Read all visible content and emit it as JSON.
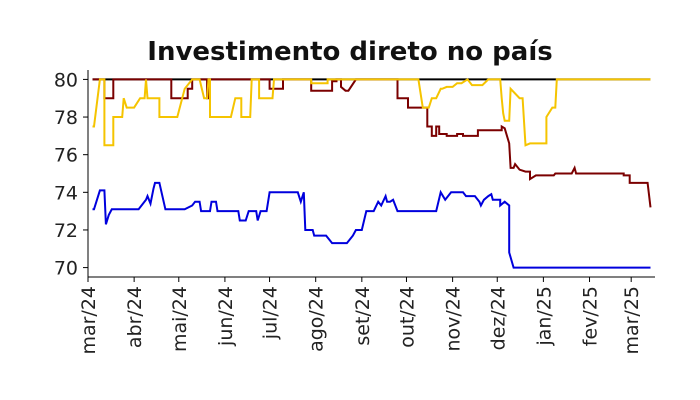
{
  "chart_data": {
    "type": "line",
    "title": "Investimento direto no país",
    "xlabel": "",
    "ylabel": "",
    "x_axis": {
      "type": "date",
      "range": [
        "2024-03-01",
        "2025-03-17"
      ],
      "ticks": [
        "2024-03-01",
        "2024-04-01",
        "2024-05-01",
        "2024-06-01",
        "2024-07-01",
        "2024-08-01",
        "2024-09-01",
        "2024-10-01",
        "2024-11-01",
        "2024-12-01",
        "2025-01-01",
        "2025-02-01",
        "2025-03-01"
      ],
      "tick_labels": [
        "mar/24",
        "abr/24",
        "mai/24",
        "jun/24",
        "jul/24",
        "ago/24",
        "set/24",
        "out/24",
        "nov/24",
        "dez/24",
        "jan/25",
        "fev/25",
        "mar/25"
      ]
    },
    "y_axis": {
      "range": [
        69.5,
        80.5
      ],
      "ticks": [
        70,
        72,
        74,
        76,
        78,
        80
      ],
      "tick_labels": [
        "70",
        "72",
        "74",
        "76",
        "78",
        "80"
      ]
    },
    "grid": false,
    "legend": "none",
    "series": [
      {
        "color": "#000000",
        "points": [
          [
            "2024-03-04",
            80
          ],
          [
            "2025-03-14",
            80
          ]
        ]
      },
      {
        "color": "#7b0000",
        "points": [
          [
            "2024-03-04",
            80
          ],
          [
            "2024-03-12",
            80
          ],
          [
            "2024-03-12",
            79
          ],
          [
            "2024-03-18",
            79
          ],
          [
            "2024-03-18",
            80
          ],
          [
            "2024-04-26",
            80
          ],
          [
            "2024-04-26",
            79
          ],
          [
            "2024-05-07",
            79
          ],
          [
            "2024-05-07",
            79.5
          ],
          [
            "2024-05-10",
            79.5
          ],
          [
            "2024-05-10",
            80
          ],
          [
            "2024-05-20",
            80
          ],
          [
            "2024-05-20",
            79
          ],
          [
            "2024-05-21",
            79
          ],
          [
            "2024-05-21",
            80
          ],
          [
            "2024-07-01",
            80
          ],
          [
            "2024-07-01",
            79.5
          ],
          [
            "2024-07-10",
            79.5
          ],
          [
            "2024-07-10",
            80
          ],
          [
            "2024-07-29",
            80
          ],
          [
            "2024-07-29",
            79.4
          ],
          [
            "2024-08-12",
            79.4
          ],
          [
            "2024-08-12",
            79.9
          ],
          [
            "2024-08-15",
            79.9
          ],
          [
            "2024-08-15",
            80
          ],
          [
            "2024-08-18",
            80
          ],
          [
            "2024-08-18",
            79.6
          ],
          [
            "2024-08-21",
            79.4
          ],
          [
            "2024-08-23",
            79.4
          ],
          [
            "2024-08-28",
            80
          ],
          [
            "2024-09-25",
            80
          ],
          [
            "2024-09-25",
            79
          ],
          [
            "2024-10-02",
            79
          ],
          [
            "2024-10-02",
            78.5
          ],
          [
            "2024-10-15",
            78.5
          ],
          [
            "2024-10-15",
            77.5
          ],
          [
            "2024-10-18",
            77.5
          ],
          [
            "2024-10-18",
            77
          ],
          [
            "2024-10-21",
            77
          ],
          [
            "2024-10-21",
            77.5
          ],
          [
            "2024-10-23",
            77.5
          ],
          [
            "2024-10-23",
            77.1
          ],
          [
            "2024-10-28",
            77.1
          ],
          [
            "2024-10-28",
            77
          ],
          [
            "2024-11-04",
            77
          ],
          [
            "2024-11-04",
            77.1
          ],
          [
            "2024-11-08",
            77.1
          ],
          [
            "2024-11-08",
            77
          ],
          [
            "2024-11-18",
            77
          ],
          [
            "2024-11-18",
            77.3
          ],
          [
            "2024-11-28",
            77.3
          ],
          [
            "2024-11-28",
            77.3
          ],
          [
            "2024-12-04",
            77.3
          ],
          [
            "2024-12-04",
            77.5
          ],
          [
            "2024-12-06",
            77.4
          ],
          [
            "2024-12-09",
            76.6
          ],
          [
            "2024-12-10",
            75.3
          ],
          [
            "2024-12-12",
            75.3
          ],
          [
            "2024-12-13",
            75.5
          ],
          [
            "2024-12-16",
            75.2
          ],
          [
            "2024-12-20",
            75.1
          ],
          [
            "2024-12-23",
            75.1
          ],
          [
            "2024-12-23",
            74.7
          ],
          [
            "2024-12-27",
            74.9
          ],
          [
            "2025-01-08",
            74.9
          ],
          [
            "2025-01-09",
            75
          ],
          [
            "2025-01-20",
            75
          ],
          [
            "2025-01-22",
            75.3
          ],
          [
            "2025-01-23",
            75
          ],
          [
            "2025-02-24",
            75
          ],
          [
            "2025-02-24",
            74.9
          ],
          [
            "2025-02-28",
            74.9
          ],
          [
            "2025-02-28",
            74.5
          ],
          [
            "2025-03-12",
            74.5
          ],
          [
            "2025-03-14",
            73.2
          ]
        ]
      },
      {
        "color": "#f5c400",
        "points": [
          [
            "2024-03-04",
            77.5
          ],
          [
            "2024-03-05",
            77.5
          ],
          [
            "2024-03-09",
            80
          ],
          [
            "2024-03-12",
            80
          ],
          [
            "2024-03-12",
            76.5
          ],
          [
            "2024-03-18",
            76.5
          ],
          [
            "2024-03-18",
            78
          ],
          [
            "2024-03-24",
            78
          ],
          [
            "2024-03-25",
            79
          ],
          [
            "2024-03-27",
            78.5
          ],
          [
            "2024-04-01",
            78.5
          ],
          [
            "2024-04-05",
            79
          ],
          [
            "2024-04-08",
            79
          ],
          [
            "2024-04-09",
            80
          ],
          [
            "2024-04-10",
            79
          ],
          [
            "2024-04-18",
            79
          ],
          [
            "2024-04-18",
            78
          ],
          [
            "2024-04-30",
            78
          ],
          [
            "2024-05-05",
            79.5
          ],
          [
            "2024-05-10",
            80
          ],
          [
            "2024-05-15",
            80
          ],
          [
            "2024-05-18",
            79
          ],
          [
            "2024-05-20",
            79
          ],
          [
            "2024-05-21",
            80
          ],
          [
            "2024-05-22",
            80
          ],
          [
            "2024-05-22",
            78
          ],
          [
            "2024-06-05",
            78
          ],
          [
            "2024-06-08",
            79
          ],
          [
            "2024-06-12",
            79
          ],
          [
            "2024-06-12",
            78
          ],
          [
            "2024-06-18",
            78
          ],
          [
            "2024-06-19",
            80
          ],
          [
            "2024-06-24",
            80
          ],
          [
            "2024-06-24",
            79
          ],
          [
            "2024-07-03",
            79
          ],
          [
            "2024-07-04",
            80
          ],
          [
            "2024-07-29",
            80
          ],
          [
            "2024-07-29",
            79.8
          ],
          [
            "2024-08-09",
            79.8
          ],
          [
            "2024-08-09",
            80
          ],
          [
            "2024-10-09",
            80
          ],
          [
            "2024-10-12",
            78.5
          ],
          [
            "2024-10-16",
            78.5
          ],
          [
            "2024-10-18",
            79
          ],
          [
            "2024-10-21",
            79
          ],
          [
            "2024-10-24",
            79.5
          ],
          [
            "2024-10-25",
            79.5
          ],
          [
            "2024-10-28",
            79.6
          ],
          [
            "2024-11-01",
            79.6
          ],
          [
            "2024-11-04",
            79.8
          ],
          [
            "2024-11-07",
            79.8
          ],
          [
            "2024-11-11",
            80
          ],
          [
            "2024-11-14",
            79.7
          ],
          [
            "2024-11-21",
            79.7
          ],
          [
            "2024-11-25",
            80
          ],
          [
            "2024-12-03",
            80
          ],
          [
            "2024-12-04",
            79
          ],
          [
            "2024-12-05",
            78.2
          ],
          [
            "2024-12-06",
            77.8
          ],
          [
            "2024-12-09",
            77.8
          ],
          [
            "2024-12-10",
            79.5
          ],
          [
            "2024-12-16",
            79
          ],
          [
            "2024-12-18",
            79
          ],
          [
            "2024-12-20",
            76.5
          ],
          [
            "2024-12-23",
            76.6
          ],
          [
            "2025-01-03",
            76.6
          ],
          [
            "2025-01-03",
            78
          ],
          [
            "2025-01-07",
            78.5
          ],
          [
            "2025-01-09",
            78.5
          ],
          [
            "2025-01-10",
            80
          ],
          [
            "2025-03-14",
            80
          ]
        ]
      },
      {
        "color": "#0000dd",
        "points": [
          [
            "2024-03-04",
            73.1
          ],
          [
            "2024-03-05",
            73.1
          ],
          [
            "2024-03-09",
            74.1
          ],
          [
            "2024-03-12",
            74.1
          ],
          [
            "2024-03-13",
            72.3
          ],
          [
            "2024-03-15",
            72.8
          ],
          [
            "2024-03-17",
            73.1
          ],
          [
            "2024-04-04",
            73.1
          ],
          [
            "2024-04-09",
            73.6
          ],
          [
            "2024-04-10",
            73.8
          ],
          [
            "2024-04-12",
            73.4
          ],
          [
            "2024-04-14",
            74.2
          ],
          [
            "2024-04-15",
            74.5
          ],
          [
            "2024-04-18",
            74.5
          ],
          [
            "2024-04-22",
            73.1
          ],
          [
            "2024-05-05",
            73.1
          ],
          [
            "2024-05-10",
            73.3
          ],
          [
            "2024-05-12",
            73.5
          ],
          [
            "2024-05-15",
            73.5
          ],
          [
            "2024-05-16",
            73
          ],
          [
            "2024-05-22",
            73
          ],
          [
            "2024-05-23",
            73.5
          ],
          [
            "2024-05-26",
            73.5
          ],
          [
            "2024-05-27",
            73
          ],
          [
            "2024-06-10",
            73
          ],
          [
            "2024-06-11",
            72.5
          ],
          [
            "2024-06-15",
            72.5
          ],
          [
            "2024-06-17",
            73
          ],
          [
            "2024-06-22",
            73
          ],
          [
            "2024-06-23",
            72.5
          ],
          [
            "2024-06-25",
            73
          ],
          [
            "2024-06-29",
            73
          ],
          [
            "2024-07-01",
            74
          ],
          [
            "2024-07-20",
            74
          ],
          [
            "2024-07-22",
            73.5
          ],
          [
            "2024-07-24",
            74
          ],
          [
            "2024-07-25",
            72
          ],
          [
            "2024-07-30",
            72
          ],
          [
            "2024-07-31",
            71.7
          ],
          [
            "2024-08-08",
            71.7
          ],
          [
            "2024-08-12",
            71.3
          ],
          [
            "2024-08-22",
            71.3
          ],
          [
            "2024-08-26",
            71.7
          ],
          [
            "2024-08-28",
            72
          ],
          [
            "2024-09-01",
            72
          ],
          [
            "2024-09-04",
            73
          ],
          [
            "2024-09-07",
            73
          ],
          [
            "2024-09-09",
            73
          ],
          [
            "2024-09-12",
            73.5
          ],
          [
            "2024-09-14",
            73.3
          ],
          [
            "2024-09-17",
            73.8
          ],
          [
            "2024-09-18",
            73.5
          ],
          [
            "2024-09-20",
            73.5
          ],
          [
            "2024-09-22",
            73.6
          ],
          [
            "2024-09-25",
            73
          ],
          [
            "2024-10-21",
            73
          ],
          [
            "2024-10-24",
            74
          ],
          [
            "2024-10-27",
            73.6
          ],
          [
            "2024-10-31",
            74
          ],
          [
            "2024-11-08",
            74
          ],
          [
            "2024-11-10",
            73.8
          ],
          [
            "2024-11-16",
            73.8
          ],
          [
            "2024-11-19",
            73.5
          ],
          [
            "2024-11-20",
            73.3
          ],
          [
            "2024-11-22",
            73.6
          ],
          [
            "2024-11-25",
            73.8
          ],
          [
            "2024-11-27",
            73.9
          ],
          [
            "2024-11-28",
            73.6
          ],
          [
            "2024-12-03",
            73.6
          ],
          [
            "2024-12-03",
            73.3
          ],
          [
            "2024-12-06",
            73.5
          ],
          [
            "2024-12-09",
            73.3
          ],
          [
            "2024-12-09",
            70.8
          ],
          [
            "2024-12-12",
            70
          ],
          [
            "2025-03-14",
            70
          ]
        ]
      }
    ]
  }
}
